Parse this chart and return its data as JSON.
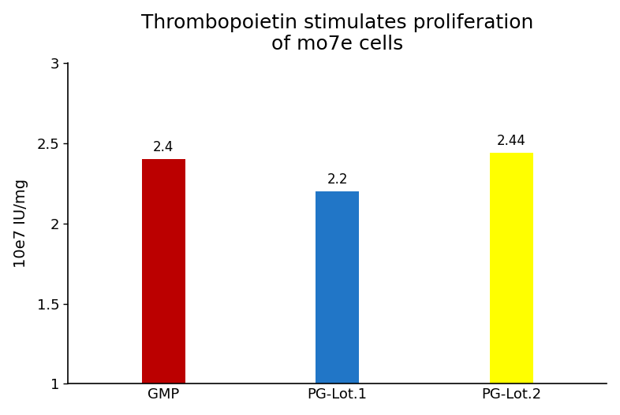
{
  "categories": [
    "GMP",
    "PG-Lot.1",
    "PG-Lot.2"
  ],
  "values": [
    2.4,
    2.2,
    2.44
  ],
  "bar_colors": [
    "#bb0000",
    "#2176c7",
    "#ffff00"
  ],
  "bar_labels": [
    "2.4",
    "2.2",
    "2.44"
  ],
  "title_line1": "Thrombopoietin stimulates proliferation",
  "title_line2": "of mo7e cells",
  "ylabel": "10e7 IU/mg",
  "ylim": [
    1,
    3
  ],
  "ytick_values": [
    1.0,
    1.5,
    2.0,
    2.5,
    3.0
  ],
  "ytick_labels": [
    "1",
    "1.5",
    "2",
    "2.5",
    "3"
  ],
  "title_fontsize": 18,
  "label_fontsize": 14,
  "tick_fontsize": 13,
  "annotation_fontsize": 12,
  "bar_width": 0.25,
  "background_color": "#ffffff"
}
